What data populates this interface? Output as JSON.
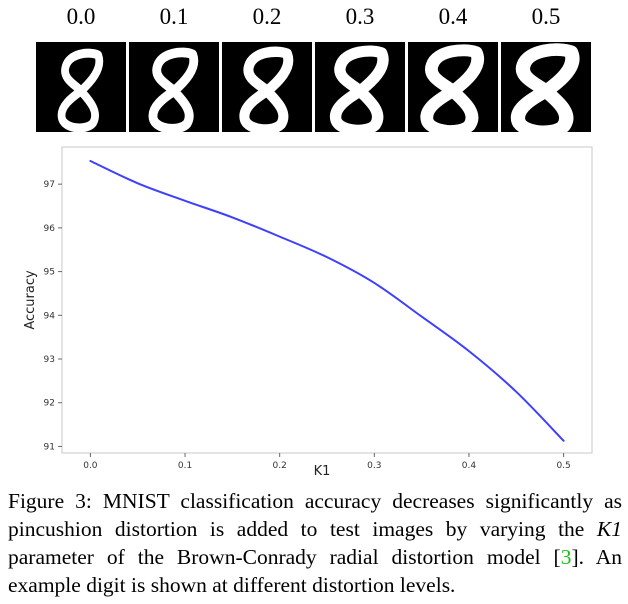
{
  "distortion_labels": [
    "0.0",
    "0.1",
    "0.2",
    "0.3",
    "0.4",
    "0.5"
  ],
  "chart_data": {
    "type": "line",
    "xlabel": "K1",
    "ylabel": "Accuracy",
    "xlim": [
      -0.03,
      0.53
    ],
    "ylim": [
      90.85,
      97.85
    ],
    "x_ticks": [
      "0.0",
      "0.1",
      "0.2",
      "0.3",
      "0.4",
      "0.5"
    ],
    "y_ticks": [
      "91",
      "92",
      "93",
      "94",
      "95",
      "96",
      "97"
    ],
    "grid": false,
    "series": [
      {
        "color": "#3f3fff",
        "x": [
          0.0,
          0.05,
          0.1,
          0.15,
          0.2,
          0.25,
          0.3,
          0.35,
          0.4,
          0.45,
          0.5
        ],
        "y": [
          97.53,
          97.02,
          96.62,
          96.24,
          95.8,
          95.33,
          94.74,
          93.97,
          93.18,
          92.25,
          91.13
        ]
      }
    ]
  },
  "caption": {
    "figure_label": "Figure 3:",
    "text_before_math": "MNIST classification accuracy decreases significantly as pincushion distortion is added to test images by varying the",
    "math": "K1",
    "text_after_math": "parameter of the Brown-Conrady radial distortion model [",
    "ref": "3",
    "text_after_ref": "]. An example digit is shown at different distortion levels."
  }
}
